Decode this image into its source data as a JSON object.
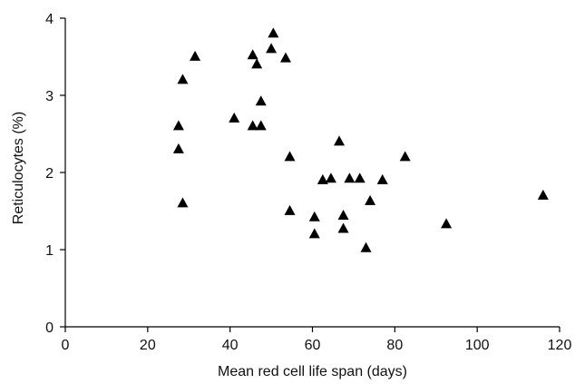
{
  "chart_data": {
    "type": "scatter",
    "title": "",
    "xlabel": "Mean red cell life span (days)",
    "ylabel": "Reticulocytes (%)",
    "xlim": [
      0,
      120
    ],
    "ylim": [
      0,
      4
    ],
    "x_ticks": [
      "0",
      "20",
      "40",
      "60",
      "80",
      "100",
      "120"
    ],
    "y_ticks": [
      "0",
      "1",
      "2",
      "3",
      "4"
    ],
    "marker": "triangle",
    "marker_color": "#000000",
    "grid": false,
    "legend": "none",
    "series": [
      {
        "points": [
          {
            "x": 27.5,
            "y": 2.6
          },
          {
            "x": 27.5,
            "y": 2.3
          },
          {
            "x": 28.5,
            "y": 3.2
          },
          {
            "x": 28.5,
            "y": 1.6
          },
          {
            "x": 31.5,
            "y": 3.5
          },
          {
            "x": 41,
            "y": 2.7
          },
          {
            "x": 45.5,
            "y": 3.52
          },
          {
            "x": 45.5,
            "y": 2.6
          },
          {
            "x": 46.5,
            "y": 3.4
          },
          {
            "x": 47.5,
            "y": 2.92
          },
          {
            "x": 47.5,
            "y": 2.6
          },
          {
            "x": 50,
            "y": 3.6
          },
          {
            "x": 50.5,
            "y": 3.8
          },
          {
            "x": 53.5,
            "y": 3.48
          },
          {
            "x": 54.5,
            "y": 2.2
          },
          {
            "x": 54.5,
            "y": 1.5
          },
          {
            "x": 60.5,
            "y": 1.42
          },
          {
            "x": 60.5,
            "y": 1.2
          },
          {
            "x": 62.5,
            "y": 1.9
          },
          {
            "x": 64.5,
            "y": 1.92
          },
          {
            "x": 66.5,
            "y": 2.4
          },
          {
            "x": 67.5,
            "y": 1.44
          },
          {
            "x": 67.5,
            "y": 1.27
          },
          {
            "x": 69,
            "y": 1.92
          },
          {
            "x": 71.5,
            "y": 1.92
          },
          {
            "x": 73,
            "y": 1.02
          },
          {
            "x": 74,
            "y": 1.63
          },
          {
            "x": 77,
            "y": 1.9
          },
          {
            "x": 82.5,
            "y": 2.2
          },
          {
            "x": 92.5,
            "y": 1.33
          },
          {
            "x": 116,
            "y": 1.7
          }
        ]
      }
    ]
  }
}
